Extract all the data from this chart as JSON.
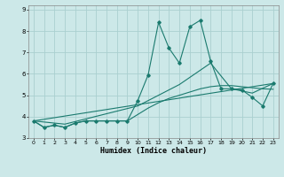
{
  "title": "",
  "xlabel": "Humidex (Indice chaleur)",
  "ylabel": "",
  "bg_color": "#cce8e8",
  "grid_color": "#aad0d0",
  "line_color": "#1a7a6e",
  "xlim": [
    -0.5,
    23.5
  ],
  "ylim": [
    3.0,
    9.2
  ],
  "xticks": [
    0,
    1,
    2,
    3,
    4,
    5,
    6,
    7,
    8,
    9,
    10,
    11,
    12,
    13,
    14,
    15,
    16,
    17,
    18,
    19,
    20,
    21,
    22,
    23
  ],
  "yticks": [
    3,
    4,
    5,
    6,
    7,
    8,
    9
  ],
  "series": [
    {
      "x": [
        0,
        1,
        2,
        3,
        4,
        5,
        6,
        7,
        8,
        9,
        10,
        11,
        12,
        13,
        14,
        15,
        16,
        17,
        18,
        19,
        20,
        21,
        22,
        23
      ],
      "y": [
        3.8,
        3.5,
        3.6,
        3.5,
        3.7,
        3.8,
        3.8,
        3.8,
        3.8,
        3.8,
        4.75,
        5.95,
        8.4,
        7.2,
        6.5,
        8.2,
        8.5,
        6.6,
        5.3,
        5.3,
        5.25,
        4.9,
        4.5,
        5.55
      ],
      "marker": "D",
      "markersize": 1.8,
      "linewidth": 0.8
    },
    {
      "x": [
        0,
        3,
        10,
        14,
        17,
        19,
        21,
        23
      ],
      "y": [
        3.8,
        3.65,
        4.5,
        5.5,
        6.5,
        5.3,
        5.1,
        5.55
      ],
      "marker": null,
      "markersize": 0,
      "linewidth": 0.8
    },
    {
      "x": [
        0,
        1,
        2,
        3,
        4,
        5,
        6,
        7,
        8,
        9,
        10,
        11,
        12,
        13,
        14,
        15,
        16,
        17,
        18,
        19,
        20,
        21,
        22,
        23
      ],
      "y": [
        3.8,
        3.5,
        3.6,
        3.5,
        3.7,
        3.8,
        3.8,
        3.8,
        3.8,
        3.8,
        4.1,
        4.4,
        4.65,
        4.85,
        5.0,
        5.15,
        5.3,
        5.4,
        5.45,
        5.45,
        5.4,
        5.35,
        5.3,
        5.28
      ],
      "marker": null,
      "markersize": 0,
      "linewidth": 0.8
    },
    {
      "x": [
        0,
        23
      ],
      "y": [
        3.8,
        5.55
      ],
      "marker": null,
      "markersize": 0,
      "linewidth": 0.8
    }
  ]
}
